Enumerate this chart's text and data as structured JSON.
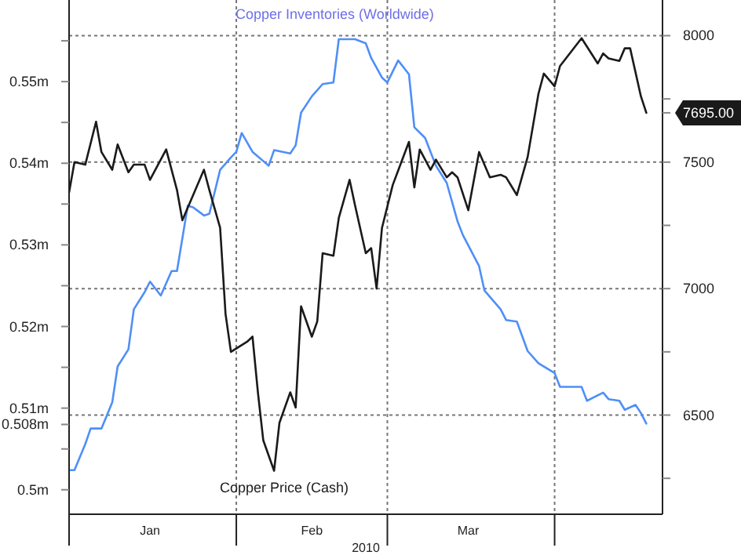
{
  "chart_data": {
    "type": "line",
    "xlabel": "2010",
    "xlim": [
      "2010-01-01",
      "2010-04-21"
    ],
    "xticks": [
      {
        "value": "2010-01-01",
        "label": null
      },
      {
        "value": "2010-01-16",
        "label": "Jan"
      },
      {
        "value": "2010-02-01",
        "label": null
      },
      {
        "value": "2010-02-15",
        "label": "Feb"
      },
      {
        "value": "2010-03-01",
        "label": null
      },
      {
        "value": "2010-03-16",
        "label": "Mar"
      },
      {
        "value": "2010-04-01",
        "label": null
      }
    ],
    "ylim": [
      0.497,
      0.56
    ],
    "yticks": [
      {
        "value": 0.5,
        "label": "0.5m"
      },
      {
        "value": 0.505,
        "label": null
      },
      {
        "value": 0.508,
        "label": "0.508m"
      },
      {
        "value": 0.51,
        "label": "0.51m"
      },
      {
        "value": 0.515,
        "label": null
      },
      {
        "value": 0.52,
        "label": "0.52m"
      },
      {
        "value": 0.525,
        "label": null
      },
      {
        "value": 0.53,
        "label": "0.53m"
      },
      {
        "value": 0.535,
        "label": null
      },
      {
        "value": 0.54,
        "label": "0.54m"
      },
      {
        "value": 0.545,
        "label": null
      },
      {
        "value": 0.55,
        "label": "0.55m"
      },
      {
        "value": 0.555,
        "label": null
      }
    ],
    "y2lim": [
      6108,
      8141
    ],
    "y2ticks": [
      {
        "value": 6250,
        "label": null
      },
      6500,
      {
        "value": 6750,
        "label": null
      },
      7000,
      {
        "value": 7250,
        "label": null
      },
      7500,
      {
        "value": 7695,
        "label": "7695.00"
      },
      {
        "value": 7750,
        "label": null
      },
      8000
    ],
    "grid": true,
    "marker": "none",
    "line_style": "solid",
    "series": [
      {
        "name": "Copper Inventories (Worldwide)",
        "color": "#4f8ff7",
        "x": [
          "2010-01-01",
          "2010-01-02",
          "2010-01-04",
          "2010-01-05",
          "2010-01-07",
          "2010-01-09",
          "2010-01-10",
          "2010-01-12",
          "2010-01-13",
          "2010-01-15",
          "2010-01-16",
          "2010-01-18",
          "2010-01-20",
          "2010-01-21",
          "2010-01-23",
          "2010-01-24",
          "2010-01-26",
          "2010-01-27",
          "2010-01-29",
          "2010-01-31",
          "2010-02-01",
          "2010-02-02",
          "2010-02-04",
          "2010-02-07",
          "2010-02-08",
          "2010-02-11",
          "2010-02-12",
          "2010-02-13",
          "2010-02-15",
          "2010-02-17",
          "2010-02-19",
          "2010-02-20",
          "2010-02-23",
          "2010-02-25",
          "2010-02-26",
          "2010-02-28",
          "2010-03-01",
          "2010-03-03",
          "2010-03-05",
          "2010-03-06",
          "2010-03-08",
          "2010-03-09",
          "2010-03-10",
          "2010-03-12",
          "2010-03-14",
          "2010-03-15",
          "2010-03-18",
          "2010-03-19",
          "2010-03-22",
          "2010-03-23",
          "2010-03-25",
          "2010-03-27",
          "2010-03-29",
          "2010-04-01",
          "2010-04-02",
          "2010-04-06",
          "2010-04-07",
          "2010-04-10",
          "2010-04-11",
          "2010-04-13",
          "2010-04-14",
          "2010-04-16",
          "2010-04-17",
          "2010-04-18"
        ],
        "values": [
          0.5024,
          0.5024,
          0.5056,
          0.5075,
          0.5075,
          0.5107,
          0.5151,
          0.5172,
          0.5221,
          0.5242,
          0.5255,
          0.5238,
          0.5268,
          0.5268,
          0.5348,
          0.5346,
          0.5336,
          0.5338,
          0.5392,
          0.5407,
          0.5414,
          0.5437,
          0.5414,
          0.5397,
          0.5416,
          0.5412,
          0.5422,
          0.5462,
          0.5482,
          0.5497,
          0.5499,
          0.5552,
          0.5552,
          0.5547,
          0.5529,
          0.5505,
          0.5499,
          0.5526,
          0.5509,
          0.5444,
          0.5431,
          0.5414,
          0.5397,
          0.5376,
          0.5329,
          0.5312,
          0.5274,
          0.5244,
          0.5221,
          0.5208,
          0.5206,
          0.517,
          0.5155,
          0.5143,
          0.5126,
          0.5126,
          0.5109,
          0.5119,
          0.5111,
          0.5109,
          0.5098,
          0.5104,
          0.5094,
          0.5081
        ]
      },
      {
        "name": "Copper Price (Cash)",
        "color": "#1a1a1a",
        "axis": "y2",
        "x": [
          "2010-01-01",
          "2010-01-02",
          "2010-01-04",
          "2010-01-06",
          "2010-01-07",
          "2010-01-09",
          "2010-01-10",
          "2010-01-12",
          "2010-01-13",
          "2010-01-15",
          "2010-01-16",
          "2010-01-19",
          "2010-01-21",
          "2010-01-22",
          "2010-01-26",
          "2010-01-27",
          "2010-01-29",
          "2010-01-30",
          "2010-01-31",
          "2010-02-03",
          "2010-02-04",
          "2010-02-05",
          "2010-02-06",
          "2010-02-08",
          "2010-02-09",
          "2010-02-11",
          "2010-02-12",
          "2010-02-13",
          "2010-02-15",
          "2010-02-16",
          "2010-02-17",
          "2010-02-19",
          "2010-02-20",
          "2010-02-22",
          "2010-02-23",
          "2010-02-25",
          "2010-02-26",
          "2010-02-27",
          "2010-02-28",
          "2010-03-02",
          "2010-03-05",
          "2010-03-06",
          "2010-03-07",
          "2010-03-09",
          "2010-03-10",
          "2010-03-12",
          "2010-03-13",
          "2010-03-14",
          "2010-03-16",
          "2010-03-18",
          "2010-03-20",
          "2010-03-22",
          "2010-03-23",
          "2010-03-25",
          "2010-03-27",
          "2010-03-29",
          "2010-03-30",
          "2010-04-01",
          "2010-04-02",
          "2010-04-06",
          "2010-04-09",
          "2010-04-10",
          "2010-04-11",
          "2010-04-13",
          "2010-04-14",
          "2010-04-15",
          "2010-04-17",
          "2010-04-18"
        ],
        "values": [
          7380,
          7500,
          7490,
          7660,
          7540,
          7470,
          7570,
          7460,
          7490,
          7490,
          7430,
          7550,
          7390,
          7270,
          7470,
          7390,
          7240,
          6900,
          6750,
          6790,
          6810,
          6590,
          6400,
          6280,
          6470,
          6590,
          6530,
          6930,
          6810,
          6870,
          7140,
          7130,
          7280,
          7430,
          7330,
          7140,
          7160,
          7000,
          7240,
          7410,
          7580,
          7400,
          7550,
          7470,
          7510,
          7440,
          7460,
          7440,
          7310,
          7540,
          7440,
          7450,
          7440,
          7370,
          7520,
          7770,
          7850,
          7800,
          7880,
          7990,
          7890,
          7930,
          7910,
          7900,
          7950,
          7950,
          7760,
          7695
        ]
      }
    ]
  }
}
